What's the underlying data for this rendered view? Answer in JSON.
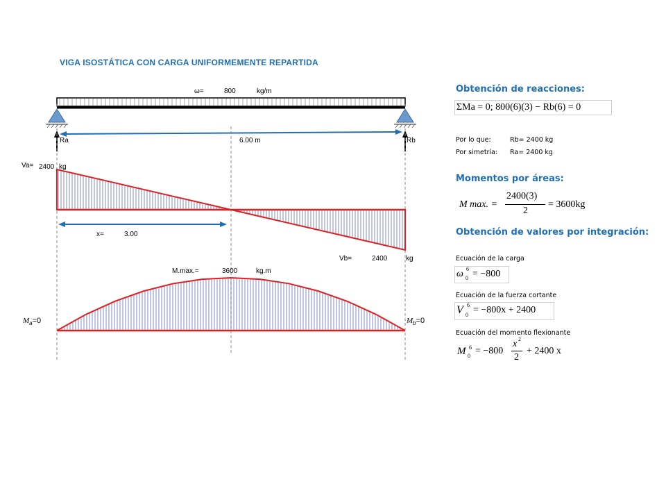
{
  "title": "VIGA ISOSTÁTICA CON CARGA UNIFORMEMENTE REPARTIDA",
  "load": {
    "omega_label": "ω=",
    "omega_value": "800",
    "omega_unit": "kg/m"
  },
  "supports": {
    "ra": "Ra",
    "rb": "Rb",
    "span": "6.00 m"
  },
  "shear": {
    "va_label": "Va=",
    "va_value": "2400",
    "va_unit": "kg",
    "x_label": "x=",
    "x_value": "3.00",
    "vb_label": "Vb=",
    "vb_value": "2400",
    "vb_unit": "kg"
  },
  "moment": {
    "mmax_label": "M.max.=",
    "mmax_value": "3600",
    "mmax_unit": "kg.m",
    "ma_sym": "M",
    "ma_sub": "a",
    "ma_val": "=0",
    "mb_sym": "M",
    "mb_sub": "b",
    "mb_val": "=0"
  },
  "right": {
    "h1": "Obtención de reacciones:",
    "eq1": "ΣMa = 0; 800(6)(3) − Rb(6) = 0",
    "por_lo_que_label": "Por lo que:",
    "por_lo_que_value": "Rb= 2400 kg",
    "por_simetria_label": "Por simetría:",
    "por_simetria_value": "Ra= 2400 kg",
    "h2": "Momentos por áreas:",
    "eq2_lhs": "M max. =",
    "eq2_num": "2400(3)",
    "eq2_den": "2",
    "eq2_rhs": "= 3600kg",
    "h3": "Obtención de valores por integración:",
    "carga_label": "Ecuación de la carga",
    "eq3_sym": "ω",
    "eq3_sup": "6",
    "eq3_sub": "0",
    "eq3_rhs": "= −800",
    "cortante_label": "Ecuación de la fuerza cortante",
    "eq4_sym": "V",
    "eq4_sup": "6",
    "eq4_sub": "0",
    "eq4_rhs": "= −800x + 2400",
    "momento_label": "Ecuación del momento flexionante",
    "eq5_sym": "M",
    "eq5_sup": "6",
    "eq5_sub": "0",
    "eq5_mid": "= −800",
    "eq5_num": "x",
    "eq5_numsup": "2",
    "eq5_den": "2",
    "eq5_rhs": "+ 2400 x"
  },
  "chart_data": {
    "type": "area",
    "span_m": 6,
    "w_kg_per_m": 800,
    "shear_kg": {
      "x": [
        0,
        3,
        6
      ],
      "y": [
        2400,
        0,
        -2400
      ]
    },
    "moment_kgm": {
      "x": [
        0,
        0.5,
        1,
        1.5,
        2,
        2.5,
        3,
        3.5,
        4,
        4.5,
        5,
        5.5,
        6
      ],
      "y": [
        0,
        1100,
        2000,
        2700,
        3200,
        3500,
        3600,
        3500,
        3200,
        2700,
        2000,
        1100,
        0
      ]
    },
    "colors": {
      "diagram": "#e02020",
      "hatch": "#2a3f9a",
      "arrow": "#1f6fb2",
      "dash": "#8a8a8a"
    }
  }
}
